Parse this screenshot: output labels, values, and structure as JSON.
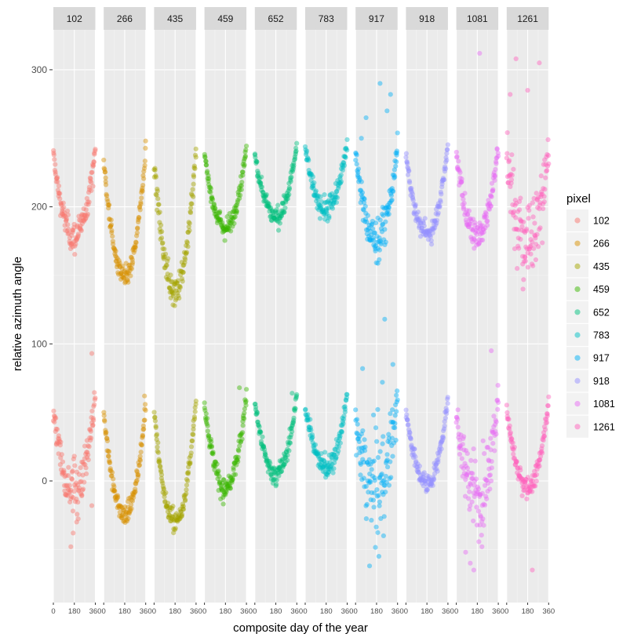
{
  "chart_data": {
    "type": "scatter",
    "title": "",
    "xlabel": "composite day of the year",
    "ylabel": "relative azimuth angle",
    "xlim": [
      0,
      360
    ],
    "ylim": [
      -85,
      330
    ],
    "x_ticks": [
      "0",
      "180",
      "360"
    ],
    "y_ticks": [
      0,
      100,
      200,
      300
    ],
    "grid": true,
    "facets": [
      "102",
      "266",
      "435",
      "459",
      "652",
      "783",
      "917",
      "918",
      "1081",
      "1261"
    ],
    "legend": {
      "title": "pixel",
      "position": "right",
      "entries": [
        "102",
        "266",
        "435",
        "459",
        "652",
        "783",
        "917",
        "918",
        "1081",
        "1261"
      ]
    },
    "series": [
      {
        "name": "102",
        "color": "#F8766D",
        "upper": {
          "left": 238,
          "min": 178,
          "right": 243,
          "spread": 6
        },
        "lower": {
          "left": 50,
          "min": -5,
          "right": 60,
          "spread": 10
        }
      },
      {
        "name": "266",
        "color": "#D89000",
        "upper": {
          "left": 234,
          "min": 148,
          "right": 243,
          "spread": 4
        },
        "lower": {
          "left": 50,
          "min": -25,
          "right": 55,
          "spread": 4
        }
      },
      {
        "name": "435",
        "color": "#A3A500",
        "upper": {
          "left": 232,
          "min": 140,
          "right": 243,
          "spread": 6
        },
        "lower": {
          "left": 50,
          "min": -30,
          "right": 58,
          "spread": 4
        }
      },
      {
        "name": "459",
        "color": "#39B600",
        "upper": {
          "left": 238,
          "min": 185,
          "right": 244,
          "spread": 4
        },
        "lower": {
          "left": 57,
          "min": -5,
          "right": 62,
          "spread": 5
        }
      },
      {
        "name": "652",
        "color": "#00BF7D",
        "upper": {
          "left": 238,
          "min": 193,
          "right": 245,
          "spread": 4
        },
        "lower": {
          "left": 57,
          "min": 5,
          "right": 62,
          "spread": 4
        }
      },
      {
        "name": "783",
        "color": "#00BFC4",
        "upper": {
          "left": 243,
          "min": 198,
          "right": 247,
          "spread": 5
        },
        "lower": {
          "left": 55,
          "min": 10,
          "right": 62,
          "spread": 5
        }
      },
      {
        "name": "917",
        "color": "#00B0F6",
        "upper": {
          "left": 238,
          "min": 176,
          "right": 244,
          "spread": 8
        },
        "lower": {
          "left": 40,
          "min": -5,
          "right": 60,
          "spread": 18
        }
      },
      {
        "name": "918",
        "color": "#9590FF",
        "upper": {
          "left": 238,
          "min": 180,
          "right": 244,
          "spread": 4
        },
        "lower": {
          "left": 52,
          "min": -2,
          "right": 60,
          "spread": 4
        }
      },
      {
        "name": "1081",
        "color": "#E76BF3",
        "upper": {
          "left": 238,
          "min": 180,
          "right": 244,
          "spread": 6
        },
        "lower": {
          "left": 50,
          "min": -10,
          "right": 60,
          "spread": 15
        }
      },
      {
        "name": "1261",
        "color": "#FF62BC",
        "upper": {
          "left": 240,
          "min": 172,
          "right": 245,
          "spread": 18
        },
        "lower": {
          "left": 52,
          "min": -5,
          "right": 58,
          "spread": 4
        }
      }
    ],
    "outliers": {
      "102": [
        [
          330,
          93
        ],
        [
          150,
          -48
        ],
        [
          170,
          -38
        ],
        [
          200,
          -30
        ],
        [
          330,
          -18
        ],
        [
          340,
          215
        ]
      ],
      "266": [
        [
          350,
          62
        ]
      ],
      "435": [
        [
          165,
          135
        ]
      ],
      "459": [
        [
          300,
          68
        ],
        [
          160,
          -12
        ],
        [
          180,
          -10
        ]
      ],
      "652": [
        [
          320,
          64
        ]
      ],
      "783": [
        [
          160,
          15
        ],
        [
          180,
          5
        ],
        [
          200,
          10
        ]
      ],
      "917": [
        [
          60,
          82
        ],
        [
          90,
          265
        ],
        [
          120,
          -62
        ],
        [
          210,
          290
        ],
        [
          230,
          72
        ],
        [
          250,
          118
        ],
        [
          270,
          270
        ],
        [
          300,
          282
        ],
        [
          320,
          85
        ],
        [
          50,
          250
        ],
        [
          200,
          -55
        ],
        [
          240,
          -40
        ]
      ],
      "918": [],
      "1081": [
        [
          200,
          312
        ],
        [
          300,
          95
        ],
        [
          80,
          -52
        ],
        [
          120,
          -60
        ],
        [
          220,
          -48
        ],
        [
          150,
          -65
        ]
      ],
      "1261": [
        [
          140,
          140
        ],
        [
          80,
          308
        ],
        [
          280,
          305
        ],
        [
          180,
          285
        ],
        [
          220,
          -65
        ],
        [
          30,
          282
        ]
      ]
    }
  }
}
